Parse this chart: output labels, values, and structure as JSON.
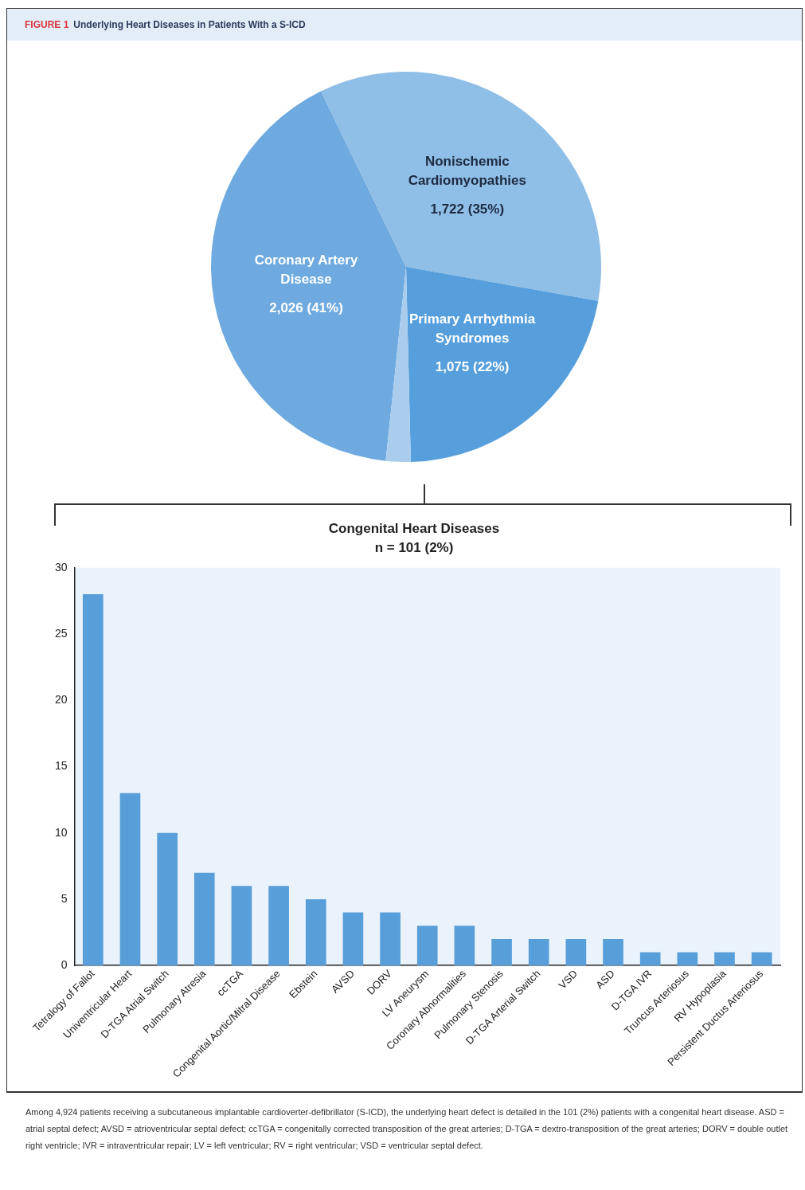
{
  "chart_data": [
    {
      "type": "pie",
      "title": "FIGURE 1 Underlying Heart Diseases in Patients With a S-ICD",
      "categories": [
        "Coronary Artery Disease",
        "Nonischemic Cardiomyopathies",
        "Primary Arrhythmia Syndromes",
        null
      ],
      "values": [
        2026,
        1722,
        1075,
        101
      ],
      "value_labels": [
        "2,026 (41%)",
        "1,722 (35%)",
        "1,075 (22%)",
        null
      ],
      "colors": [
        "#6eaadf",
        "#8fbee7",
        "#569fdc",
        "#aacdee"
      ],
      "legend": false
    },
    {
      "type": "bar",
      "title": "Congenital Heart Diseases",
      "subtitle": "n = 101 (2%)",
      "categories": [
        "Tetralogy of Fallot",
        "Univentricular Heart",
        "D-TGA Atrial Switch",
        "Pulmonary Atresia",
        "ccTGA",
        "Congenital Aortic/Mitral Disease",
        "Ebstein",
        "AVSD",
        "DORV",
        "LV Aneurysm",
        "Coronary Abnormalities",
        "Pulmonary Stenosis",
        "D-TGA Arterial Switch",
        "VSD",
        "ASD",
        "D-TGA IVR",
        "Truncus Arteriosus",
        "RV Hypoplasia",
        "Persistent Ductus Arteriosus"
      ],
      "values": [
        28,
        13,
        10,
        7,
        6,
        6,
        5,
        4,
        4,
        3,
        3,
        2,
        2,
        2,
        2,
        1,
        1,
        1,
        1
      ],
      "color": "#589fda",
      "ylim": [
        0,
        30
      ],
      "yticks": [
        0,
        5,
        10,
        15,
        20,
        25,
        30
      ],
      "grid": false,
      "legend": false,
      "annotations": [
        "Among 4,924 patients receiving a subcutaneous implantable cardioverter-defibrillator (S-ICD), the underlying heart defect is detailed in the 101 (2%) patients with a congenital heart disease. ASD = atrial septal defect; AVSD = atrioventricular septal defect; ccTGA = congenitally corrected transposition of the great arteries; D-TGA = dextro-transposition of the great arteries; DORV = double outlet right ventricle; IVR = intraventricular repair; LV = left ventricular; RV = right ventricular; VSD = ventricular septal defect."
      ]
    }
  ]
}
